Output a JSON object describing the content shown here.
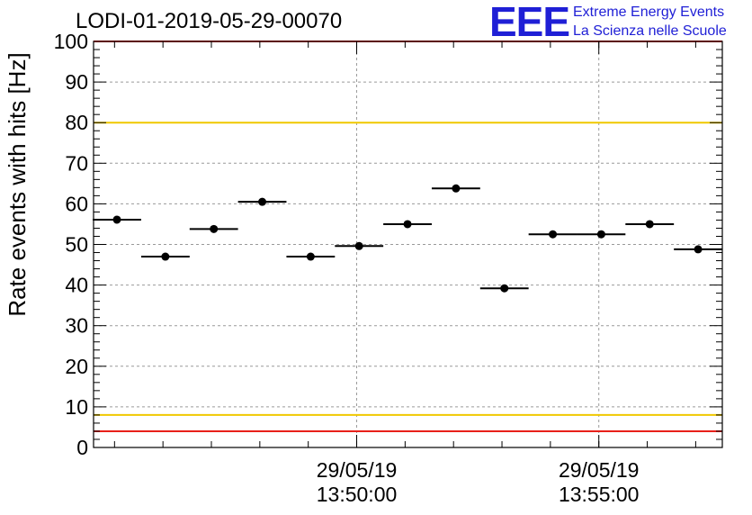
{
  "chart_data": {
    "type": "scatter",
    "title": "LODI-01-2019-05-29-00070",
    "ylabel": "Rate events with hits [Hz]",
    "xlabel": "",
    "ylim": [
      0,
      100
    ],
    "yticks": [
      "0",
      "10",
      "20",
      "30",
      "40",
      "50",
      "60",
      "70",
      "80",
      "90",
      "100"
    ],
    "xticks": [
      {
        "date": "29/05/19",
        "time": "13:50:00"
      },
      {
        "date": "29/05/19",
        "time": "13:55:00"
      }
    ],
    "grid": true,
    "series": [
      {
        "points": [
          {
            "x": "13:45:03",
            "y": 56.1
          },
          {
            "x": "13:46:03",
            "y": 47.0
          },
          {
            "x": "13:47:03",
            "y": 53.8
          },
          {
            "x": "13:48:03",
            "y": 60.5
          },
          {
            "x": "13:49:03",
            "y": 47.0
          },
          {
            "x": "13:50:03",
            "y": 49.6
          },
          {
            "x": "13:51:03",
            "y": 55.0
          },
          {
            "x": "13:52:03",
            "y": 63.8
          },
          {
            "x": "13:53:03",
            "y": 39.2
          },
          {
            "x": "13:54:03",
            "y": 52.5
          },
          {
            "x": "13:55:03",
            "y": 52.5
          },
          {
            "x": "13:56:03",
            "y": 55.0
          },
          {
            "x": "13:57:03",
            "y": 48.8
          }
        ]
      }
    ],
    "reference_lines": [
      {
        "y": 100,
        "color": "#e8201a"
      },
      {
        "y": 80,
        "color": "#f0c800"
      },
      {
        "y": 8,
        "color": "#f0c800"
      },
      {
        "y": 4,
        "color": "#e8201a"
      }
    ]
  },
  "logo": {
    "letters": "EEE",
    "line1": "Extreme Energy Events",
    "line2": "La Scienza nelle Scuole",
    "color": "#1f1fd6"
  }
}
